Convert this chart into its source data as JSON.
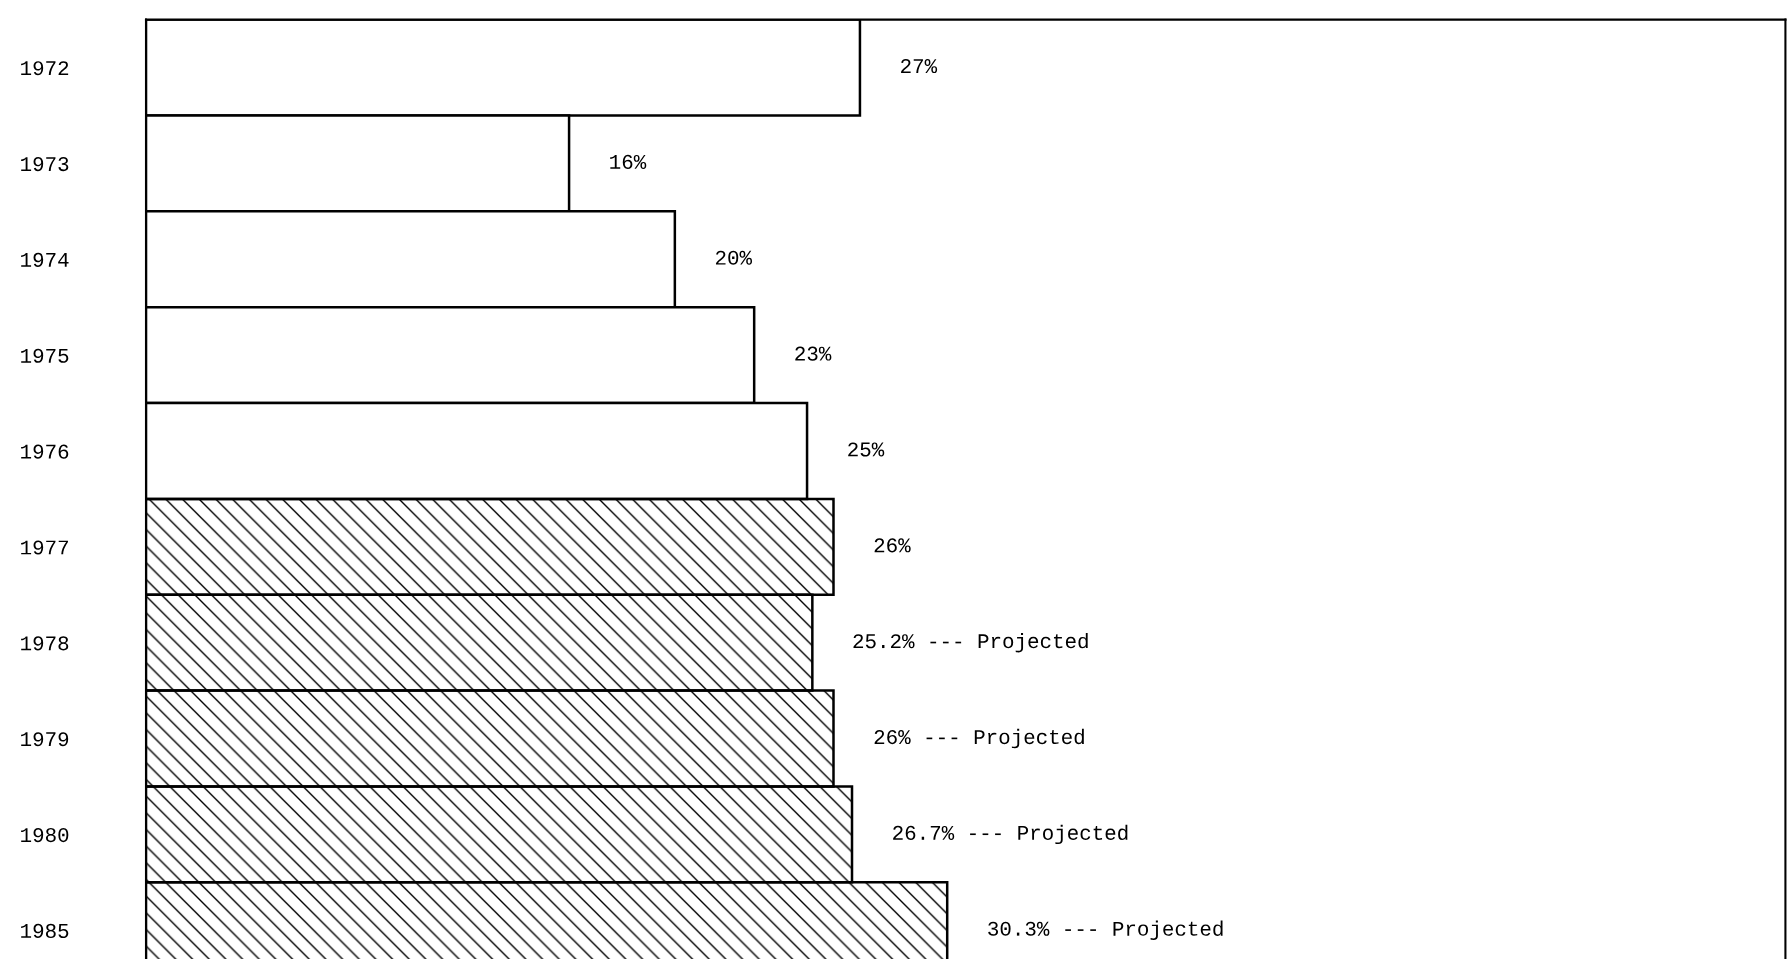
{
  "chart_data": {
    "type": "bar",
    "orientation": "horizontal",
    "categories": [
      "1972",
      "1973",
      "1974",
      "1975",
      "1976",
      "1977",
      "1978",
      "1979",
      "1980",
      "1985"
    ],
    "series": [
      {
        "color": "#ffffff",
        "values": [
          27,
          16,
          20,
          23,
          25,
          null,
          null,
          null,
          null,
          null
        ],
        "value_labels": [
          "27%",
          "16%",
          "20%",
          "23%",
          "25%",
          null,
          null,
          null,
          null,
          null
        ]
      },
      {
        "color": "#000000",
        "values": [
          null,
          null,
          null,
          null,
          null,
          26,
          25.2,
          26,
          26.7,
          30.3
        ],
        "value_labels": [
          null,
          null,
          null,
          null,
          null,
          "26%",
          "25.2% --- Projected",
          "26% --- Projected",
          "26.7% --- Projected",
          "30.3% --- Projected"
        ]
      }
    ],
    "xlim": [
      0,
      62
    ],
    "tick_labels": "y",
    "grid": false,
    "legend": false
  }
}
